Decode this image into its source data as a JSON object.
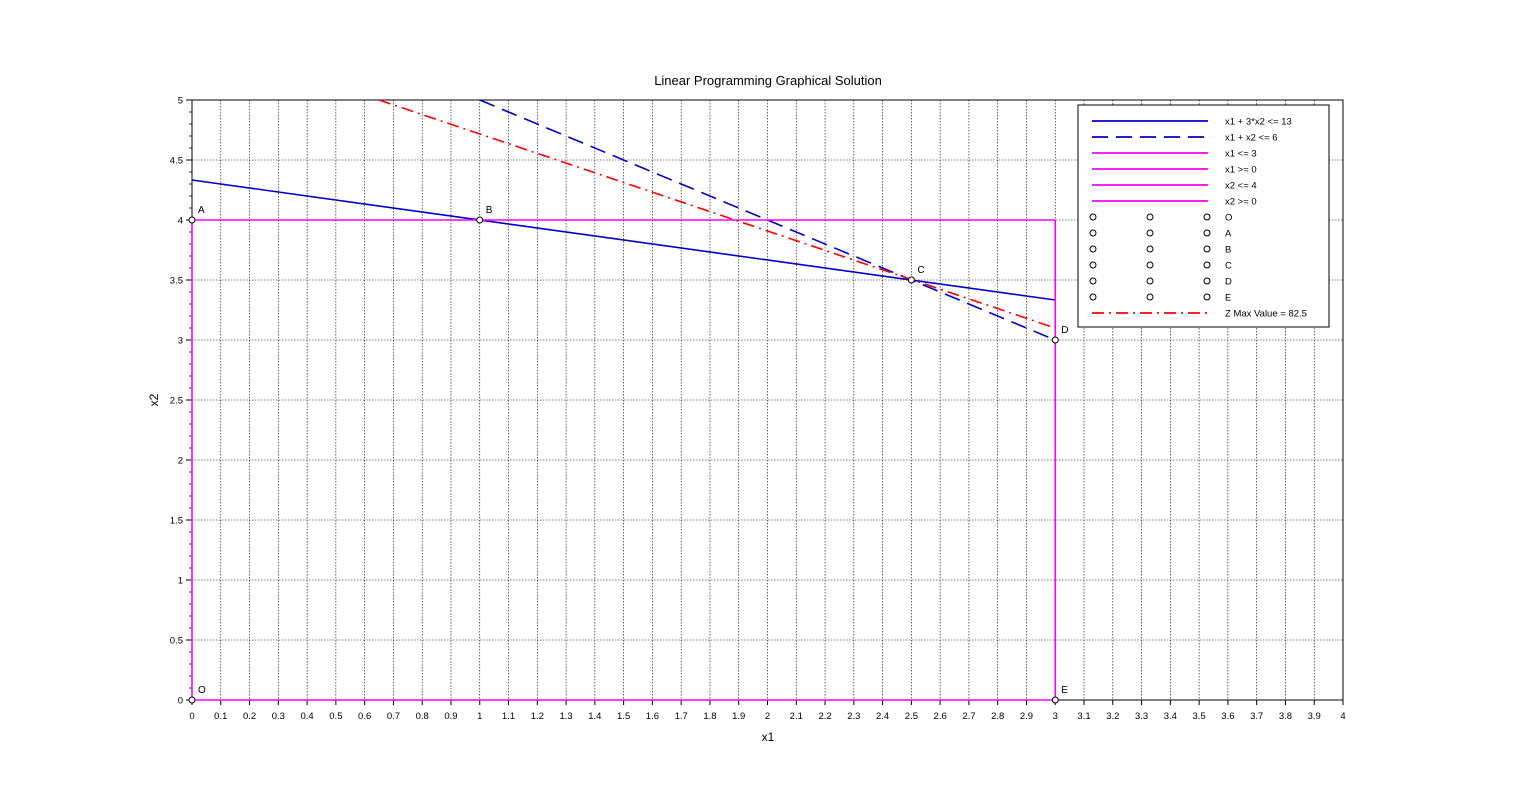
{
  "chart_data": {
    "type": "line",
    "title": "Linear Programming Graphical Solution",
    "xlabel": "x1",
    "ylabel": "x2",
    "xlim": [
      0,
      4
    ],
    "ylim": [
      0,
      5
    ],
    "x_ticks": [
      "0",
      "0.1",
      "0.2",
      "0.3",
      "0.4",
      "0.5",
      "0.6",
      "0.7",
      "0.8",
      "0.9",
      "1",
      "1.1",
      "1.2",
      "1.3",
      "1.4",
      "1.5",
      "1.6",
      "1.7",
      "1.8",
      "1.9",
      "2",
      "2.1",
      "2.2",
      "2.3",
      "2.4",
      "2.5",
      "2.6",
      "2.7",
      "2.8",
      "2.9",
      "3",
      "3.1",
      "3.2",
      "3.3",
      "3.4",
      "3.5",
      "3.6",
      "3.7",
      "3.8",
      "3.9",
      "4"
    ],
    "y_ticks": [
      "0",
      "0.5",
      "1",
      "1.5",
      "2",
      "2.5",
      "3",
      "3.5",
      "4",
      "4.5",
      "5"
    ],
    "grid": true,
    "legend_position": "top-right",
    "series": [
      {
        "name": "x1 + 3*x2 <= 13",
        "color": "#0000cc",
        "style": "solid",
        "x": [
          0,
          3
        ],
        "y": [
          4.3333,
          3.3333
        ]
      },
      {
        "name": "x1 + x2   <= 6",
        "color": "#0000cc",
        "style": "dashed",
        "x": [
          1,
          3
        ],
        "y": [
          5,
          3
        ]
      },
      {
        "name": "x1 <= 3",
        "color": "#ff00ff",
        "style": "solid",
        "x": [
          3,
          3
        ],
        "y": [
          0,
          4
        ]
      },
      {
        "name": "x1 >= 0",
        "color": "#ff00ff",
        "style": "solid",
        "x": [
          0,
          0
        ],
        "y": [
          0,
          4
        ]
      },
      {
        "name": "x2 <= 4",
        "color": "#ff00ff",
        "style": "solid",
        "x": [
          0,
          3
        ],
        "y": [
          4,
          4
        ]
      },
      {
        "name": "x2 >= 0",
        "color": "#ff00ff",
        "style": "solid",
        "x": [
          0,
          3
        ],
        "y": [
          0,
          0
        ]
      },
      {
        "name": "Z Max Value = 82.5",
        "color": "#ff0000",
        "style": "dashdot",
        "x": [
          0.65,
          3
        ],
        "y": [
          5,
          3.1
        ]
      }
    ],
    "points": [
      {
        "label": "O",
        "x": 0,
        "y": 0
      },
      {
        "label": "A",
        "x": 0,
        "y": 4
      },
      {
        "label": "B",
        "x": 1,
        "y": 4
      },
      {
        "label": "C",
        "x": 2.5,
        "y": 3.5
      },
      {
        "label": "D",
        "x": 3,
        "y": 3
      },
      {
        "label": "E",
        "x": 3,
        "y": 0
      }
    ],
    "point_legend": [
      "O",
      "A",
      "B",
      "C",
      "D",
      "E"
    ]
  }
}
